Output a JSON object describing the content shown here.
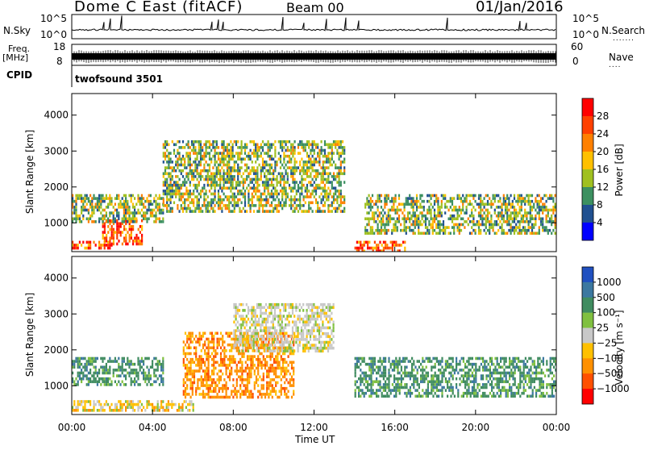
{
  "header": {
    "title": "Dome C East (fitACF)",
    "beam": "Beam 00",
    "date": "01/Jan/2016"
  },
  "strip": {
    "nsky_label": "N.Sky",
    "nsky_ticks": [
      "10^5",
      "10^0"
    ],
    "nsearch_label": "N.Search",
    "nsearch_ticks": [
      "10^5",
      "10^0"
    ],
    "freq_label": "Freq.",
    "freq_unit": "[MHz]",
    "freq_ticks": [
      "18",
      "8"
    ],
    "nave_label": "Nave",
    "nave_ticks": [
      "60",
      "0"
    ],
    "cpid_label": "CPID",
    "cpid_text": "twofsound 3501"
  },
  "chart_data": [
    {
      "type": "heatmap",
      "name": "power",
      "ylabel": "Slant Range [km]",
      "ylim": [
        200,
        4600
      ],
      "yticks": [
        1000,
        2000,
        3000,
        4000
      ],
      "xlim": [
        0,
        24
      ],
      "colorbar": {
        "label": "Power [dB]",
        "ticks": [
          "28",
          "24",
          "20",
          "16",
          "12",
          "8",
          "4"
        ],
        "colors": [
          "#ff0000",
          "#ff4000",
          "#ff8000",
          "#ffc000",
          "#a0c020",
          "#3c9060",
          "#205090",
          "#0000ff"
        ]
      },
      "regions": [
        {
          "x": [
            0.0,
            2.0
          ],
          "y": [
            300,
            500
          ],
          "level": "high"
        },
        {
          "x": [
            1.5,
            3.5
          ],
          "y": [
            450,
            1100
          ],
          "level": "high"
        },
        {
          "x": [
            0.0,
            4.5
          ],
          "y": [
            1000,
            1800
          ],
          "level": "medium"
        },
        {
          "x": [
            4.5,
            13.5
          ],
          "y": [
            1300,
            3300
          ],
          "level": "medium"
        },
        {
          "x": [
            14.0,
            16.5
          ],
          "y": [
            200,
            500
          ],
          "level": "high"
        },
        {
          "x": [
            14.5,
            24.0
          ],
          "y": [
            700,
            1800
          ],
          "level": "medium"
        }
      ]
    },
    {
      "type": "heatmap",
      "name": "velocity",
      "ylabel": "Slant Range [km]",
      "ylim": [
        200,
        4600
      ],
      "yticks": [
        1000,
        2000,
        3000,
        4000
      ],
      "xlim": [
        0,
        24
      ],
      "colorbar": {
        "label": "Velocity [m s⁻¹]",
        "ticks": [
          "1000",
          "500",
          "100",
          "25",
          "−25",
          "−100",
          "−500",
          "−1000"
        ],
        "colors": [
          "#2050c0",
          "#3c78a0",
          "#408c60",
          "#80c040",
          "#c8c8c8",
          "#ffc000",
          "#ff9000",
          "#ff5000",
          "#ff0000"
        ]
      },
      "regions": [
        {
          "x": [
            0.0,
            4.5
          ],
          "y": [
            1000,
            1800
          ],
          "level": "positive"
        },
        {
          "x": [
            0.0,
            6.0
          ],
          "y": [
            300,
            600
          ],
          "level": "slightly negative"
        },
        {
          "x": [
            5.5,
            11.0
          ],
          "y": [
            700,
            2500
          ],
          "level": "negative"
        },
        {
          "x": [
            8.0,
            13.0
          ],
          "y": [
            2000,
            3300
          ],
          "level": "near zero"
        },
        {
          "x": [
            14.0,
            24.0
          ],
          "y": [
            700,
            1800
          ],
          "level": "positive"
        }
      ]
    }
  ],
  "xaxis": {
    "label": "Time UT",
    "ticks": [
      "00:00",
      "04:00",
      "08:00",
      "12:00",
      "16:00",
      "20:00",
      "00:00"
    ]
  }
}
